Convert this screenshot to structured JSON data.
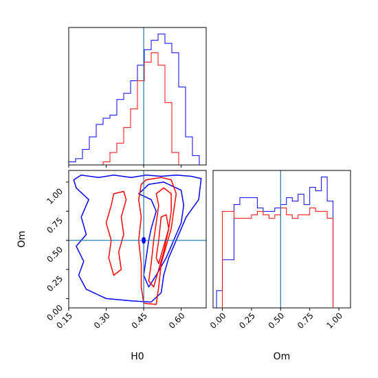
{
  "chart_data": [
    {
      "type": "histogram",
      "panel": "H0 marginal",
      "xlim": [
        0.15,
        0.7
      ],
      "yticks": false,
      "truth_line": 0.45,
      "bins": [
        0.15,
        0.1775,
        0.205,
        0.2325,
        0.26,
        0.2875,
        0.315,
        0.3425,
        0.37,
        0.3975,
        0.425,
        0.4525,
        0.48,
        0.5075,
        0.535,
        0.5625,
        0.59,
        0.6175,
        0.645,
        0.6725,
        0.7
      ],
      "series": [
        {
          "color": "#0000ff",
          "counts": [
            1,
            2,
            5,
            9,
            13,
            15,
            16,
            21,
            23,
            27,
            32,
            37,
            40,
            42,
            39,
            36,
            25,
            9,
            3,
            0
          ]
        },
        {
          "color": "#ff0000",
          "counts": [
            0,
            0,
            0,
            0,
            0,
            1,
            4,
            7,
            12,
            18,
            27,
            33,
            36,
            32,
            20,
            4,
            0,
            0,
            0,
            0
          ]
        }
      ]
    },
    {
      "type": "contour",
      "panel": "H0 vs Om",
      "xlabel": "H0",
      "ylabel": "Om",
      "xlim": [
        0.15,
        0.7
      ],
      "ylim": [
        -0.08,
        1.1
      ],
      "xticks": [
        "0.15",
        "0.30",
        "0.45",
        "0.60"
      ],
      "xtick_values": [
        0.15,
        0.3,
        0.45,
        0.6
      ],
      "yticks": [
        "0.00",
        "0.25",
        "0.50",
        "0.75",
        "1.00"
      ],
      "ytick_values": [
        0.0,
        0.25,
        0.5,
        0.75,
        1.0
      ],
      "truth": {
        "x": 0.45,
        "y": 0.5
      },
      "contours": [
        {
          "color": "#0000ff",
          "level": "outer",
          "points": [
            [
              0.17,
              1.02
            ],
            [
              0.2,
              1.06
            ],
            [
              0.27,
              1.04
            ],
            [
              0.33,
              1.06
            ],
            [
              0.4,
              1.04
            ],
            [
              0.46,
              1.06
            ],
            [
              0.52,
              1.05
            ],
            [
              0.58,
              1.06
            ],
            [
              0.64,
              1.05
            ],
            [
              0.68,
              1.03
            ],
            [
              0.67,
              0.85
            ],
            [
              0.62,
              0.7
            ],
            [
              0.58,
              0.5
            ],
            [
              0.55,
              0.35
            ],
            [
              0.53,
              0.2
            ],
            [
              0.52,
              0.05
            ],
            [
              0.48,
              -0.03
            ],
            [
              0.4,
              -0.02
            ],
            [
              0.3,
              0.0
            ],
            [
              0.22,
              0.08
            ],
            [
              0.19,
              0.2
            ],
            [
              0.21,
              0.32
            ],
            [
              0.18,
              0.45
            ],
            [
              0.22,
              0.55
            ],
            [
              0.2,
              0.7
            ],
            [
              0.23,
              0.85
            ],
            [
              0.18,
              0.95
            ],
            [
              0.17,
              1.02
            ]
          ]
        },
        {
          "color": "#0000ff",
          "level": "mid",
          "points": [
            [
              0.43,
              0.9
            ],
            [
              0.47,
              0.98
            ],
            [
              0.53,
              1.0
            ],
            [
              0.57,
              0.96
            ],
            [
              0.6,
              0.93
            ],
            [
              0.61,
              0.8
            ],
            [
              0.6,
              0.65
            ],
            [
              0.57,
              0.5
            ],
            [
              0.54,
              0.35
            ],
            [
              0.5,
              0.2
            ],
            [
              0.47,
              0.1
            ],
            [
              0.45,
              0.2
            ],
            [
              0.46,
              0.35
            ],
            [
              0.47,
              0.5
            ],
            [
              0.48,
              0.6
            ],
            [
              0.5,
              0.75
            ],
            [
              0.48,
              0.85
            ],
            [
              0.43,
              0.9
            ]
          ]
        },
        {
          "color": "#ff0000",
          "level": "outer",
          "points": [
            [
              0.46,
              1.02
            ],
            [
              0.52,
              1.04
            ],
            [
              0.56,
              1.02
            ],
            [
              0.58,
              0.9
            ],
            [
              0.57,
              0.75
            ],
            [
              0.56,
              0.6
            ],
            [
              0.54,
              0.45
            ],
            [
              0.52,
              0.3
            ],
            [
              0.51,
              0.1
            ],
            [
              0.5,
              -0.05
            ],
            [
              0.45,
              -0.04
            ],
            [
              0.44,
              0.1
            ],
            [
              0.44,
              0.3
            ],
            [
              0.43,
              0.5
            ],
            [
              0.44,
              0.7
            ],
            [
              0.43,
              0.85
            ],
            [
              0.44,
              0.98
            ],
            [
              0.46,
              1.02
            ]
          ]
        },
        {
          "color": "#ff0000",
          "level": "mid",
          "points": [
            [
              0.5,
              0.9
            ],
            [
              0.53,
              0.95
            ],
            [
              0.56,
              0.9
            ],
            [
              0.56,
              0.75
            ],
            [
              0.55,
              0.6
            ],
            [
              0.53,
              0.4
            ],
            [
              0.51,
              0.25
            ],
            [
              0.49,
              0.1
            ],
            [
              0.47,
              0.15
            ],
            [
              0.48,
              0.3
            ],
            [
              0.49,
              0.5
            ],
            [
              0.5,
              0.65
            ],
            [
              0.51,
              0.8
            ],
            [
              0.5,
              0.9
            ]
          ]
        },
        {
          "color": "#ff0000",
          "level": "inner",
          "points": [
            [
              0.52,
              0.7
            ],
            [
              0.54,
              0.72
            ],
            [
              0.55,
              0.6
            ],
            [
              0.53,
              0.45
            ],
            [
              0.51,
              0.3
            ],
            [
              0.5,
              0.35
            ],
            [
              0.51,
              0.5
            ],
            [
              0.52,
              0.7
            ]
          ]
        },
        {
          "color": "#ff0000",
          "level": "islands",
          "points": [
            [
              0.33,
              0.9
            ],
            [
              0.37,
              0.92
            ],
            [
              0.38,
              0.85
            ],
            [
              0.36,
              0.7
            ],
            [
              0.37,
              0.55
            ],
            [
              0.35,
              0.4
            ],
            [
              0.36,
              0.25
            ],
            [
              0.33,
              0.2
            ],
            [
              0.31,
              0.35
            ],
            [
              0.32,
              0.5
            ],
            [
              0.3,
              0.65
            ],
            [
              0.32,
              0.8
            ],
            [
              0.33,
              0.9
            ]
          ]
        }
      ]
    },
    {
      "type": "histogram",
      "panel": "Om marginal",
      "xlabel": "Om",
      "xlim": [
        -0.08,
        1.1
      ],
      "xticks": [
        "0.00",
        "0.25",
        "0.50",
        "0.75",
        "1.00"
      ],
      "xtick_values": [
        0.0,
        0.25,
        0.5,
        0.75,
        1.0
      ],
      "yticks": false,
      "truth_line": 0.5,
      "bins": [
        -0.05,
        0.0,
        0.05,
        0.1,
        0.15,
        0.2,
        0.25,
        0.3,
        0.35,
        0.4,
        0.45,
        0.5,
        0.55,
        0.6,
        0.65,
        0.7,
        0.75,
        0.8,
        0.85,
        0.9,
        0.95,
        1.0,
        1.05
      ],
      "series": [
        {
          "color": "#0000ff",
          "counts": [
            5,
            14,
            14,
            30,
            32,
            32,
            32,
            29,
            28,
            28,
            29,
            30,
            32,
            31,
            33,
            30,
            35,
            34,
            38,
            31,
            0,
            0
          ]
        },
        {
          "color": "#ff0000",
          "counts": [
            0,
            28,
            28,
            26,
            26,
            26,
            27,
            28,
            27,
            26,
            27,
            29,
            27,
            26,
            27,
            27,
            29,
            28,
            28,
            26,
            0,
            0
          ]
        }
      ]
    }
  ]
}
